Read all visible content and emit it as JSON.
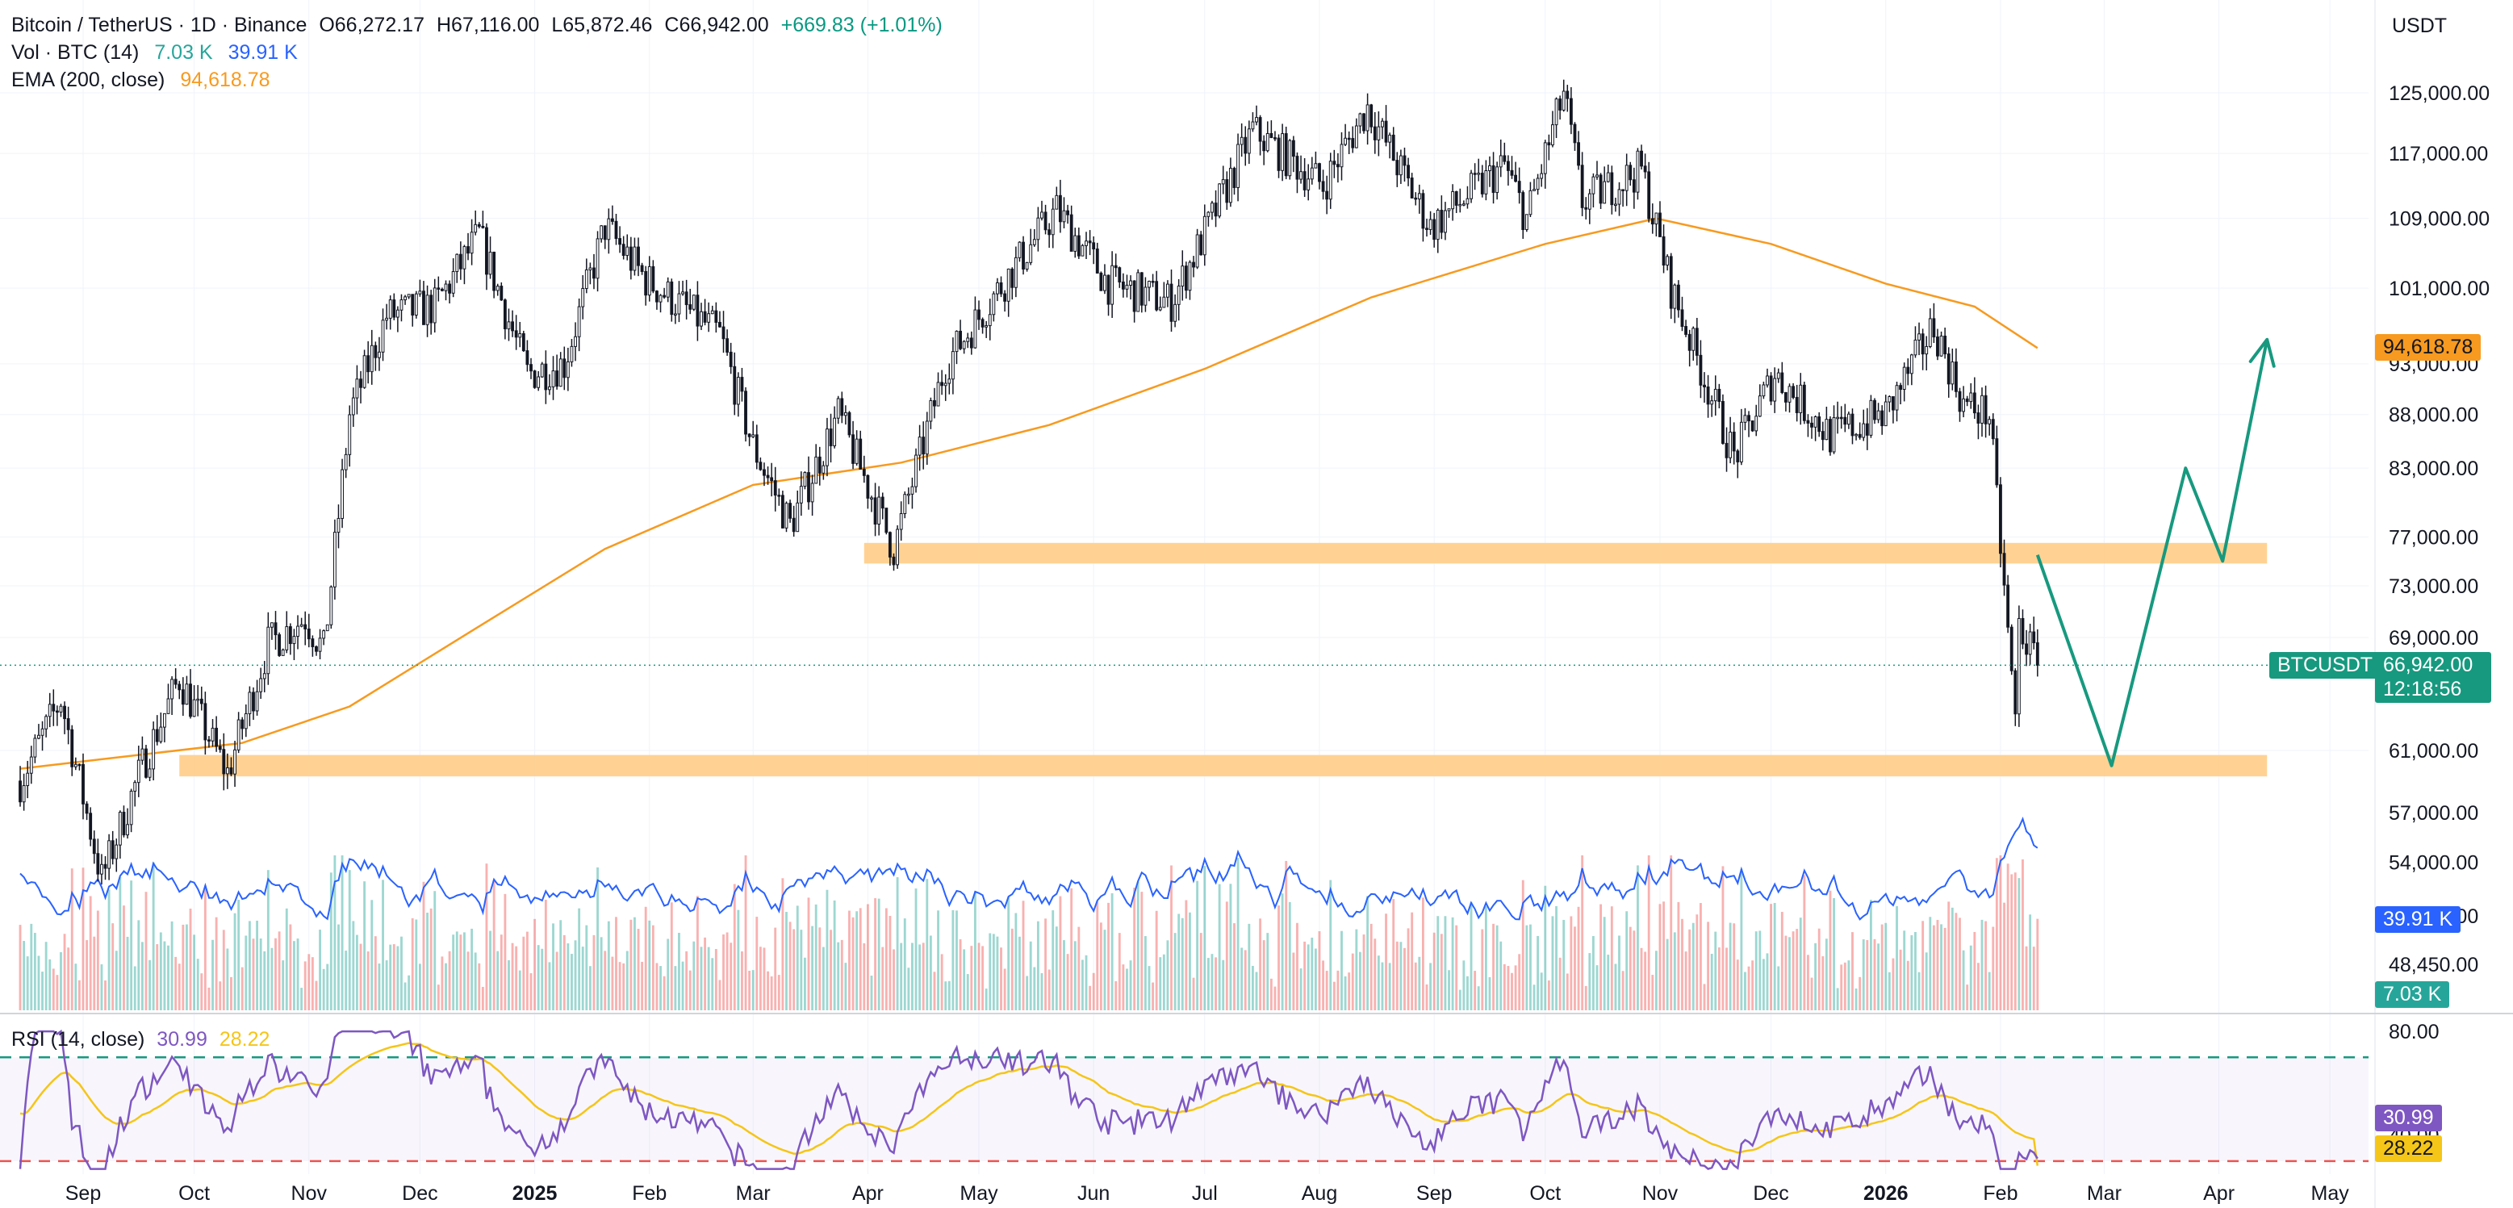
{
  "header": {
    "symbol": "Bitcoin / TetherUS · 1D · Binance",
    "open": "O66,272.17",
    "high": "H67,116.00",
    "low": "L65,872.46",
    "close": "C66,942.00",
    "change": "+669.83 (+1.01%)",
    "vol_label": "Vol · BTC (14)",
    "vol_value": "7.03 K",
    "vol_ma": "39.91 K",
    "ema_label": "EMA (200, close)",
    "ema_value": "94,618.78",
    "currency": "USDT"
  },
  "rsi_legend": {
    "label": "RSI (14, close)",
    "rsi": "30.99",
    "rsi_ma": "28.22"
  },
  "price_tags": {
    "ema": "94,618.78",
    "symbol": "BTCUSDT",
    "last": "66,942.00",
    "countdown": "12:18:56",
    "vol_ma": "39.91 K",
    "vol": "7.03 K",
    "rsi": "30.99",
    "rsi_ma": "28.22"
  },
  "colors": {
    "up": "#26a69a",
    "down": "#ef5350",
    "ema": "#f79a1f",
    "zone": "#ffca80",
    "projection": "#17997f",
    "rsi": "#7e57c2",
    "rsi_ma": "#f5c518",
    "vol_ma": "#2962ff"
  },
  "chart_data": [
    {
      "type": "candlestick",
      "title": "Bitcoin / TetherUS · 1D · Binance",
      "x_tick_labels": [
        "Sep",
        "Oct",
        "Nov",
        "Dec",
        "2025",
        "Feb",
        "Mar",
        "Apr",
        "May",
        "Jun",
        "Jul",
        "Aug",
        "Sep",
        "Oct",
        "Nov",
        "Dec",
        "2026",
        "Feb",
        "Mar",
        "Apr",
        "May"
      ],
      "y_tick_labels": [
        "125,000.00",
        "117,000.00",
        "109,000.00",
        "101,000.00",
        "93,000.00",
        "88,000.00",
        "83,000.00",
        "77,000.00",
        "73,000.00",
        "69,000.00",
        "61,000.00",
        "57,000.00",
        "54,000.00",
        "50,000.00",
        "48,450.00"
      ],
      "y_scale": "log",
      "ylim": [
        47500,
        131000
      ],
      "series": [
        {
          "name": "Bitcoin / TetherUS",
          "kind": "candles"
        },
        {
          "name": "EMA (200, close)",
          "last": 94618.78
        }
      ],
      "price_path": [
        [
          "2024-08-15",
          59000
        ],
        [
          "2024-08-26",
          64500
        ],
        [
          "2024-09-06",
          53000
        ],
        [
          "2024-09-17",
          60000
        ],
        [
          "2024-09-27",
          66000
        ],
        [
          "2024-10-10",
          59500
        ],
        [
          "2024-10-21",
          68500
        ],
        [
          "2024-10-31",
          70500
        ],
        [
          "2024-11-05",
          68000
        ],
        [
          "2024-11-12",
          88000
        ],
        [
          "2024-11-22",
          98000
        ],
        [
          "2024-12-05",
          99000
        ],
        [
          "2024-12-17",
          107000
        ],
        [
          "2024-12-30",
          92000
        ],
        [
          "2025-01-09",
          93000
        ],
        [
          "2025-01-20",
          108000
        ],
        [
          "2025-01-31",
          102000
        ],
        [
          "2025-02-20",
          96000
        ],
        [
          "2025-03-01",
          85000
        ],
        [
          "2025-03-11",
          78000
        ],
        [
          "2025-03-24",
          88000
        ],
        [
          "2025-04-08",
          76000
        ],
        [
          "2025-04-22",
          93000
        ],
        [
          "2025-05-10",
          103000
        ],
        [
          "2025-05-22",
          110000
        ],
        [
          "2025-06-05",
          101500
        ],
        [
          "2025-06-22",
          99500
        ],
        [
          "2025-07-03",
          109000
        ],
        [
          "2025-07-14",
          120000
        ],
        [
          "2025-08-02",
          113000
        ],
        [
          "2025-08-14",
          123000
        ],
        [
          "2025-08-31",
          108000
        ],
        [
          "2025-09-20",
          115500
        ],
        [
          "2025-09-26",
          109000
        ],
        [
          "2025-10-06",
          125000
        ],
        [
          "2025-10-11",
          111000
        ],
        [
          "2025-10-27",
          115000
        ],
        [
          "2025-11-04",
          101000
        ],
        [
          "2025-11-21",
          84000
        ],
        [
          "2025-12-02",
          92000
        ],
        [
          "2025-12-17",
          86000
        ],
        [
          "2026-01-01",
          88000
        ],
        [
          "2026-01-14",
          97000
        ],
        [
          "2026-01-22",
          89000
        ],
        [
          "2026-01-29",
          88000
        ],
        [
          "2026-02-05",
          63000
        ],
        [
          "2026-02-06",
          70000
        ],
        [
          "2026-02-11",
          66942
        ]
      ],
      "ema_path": [
        [
          "2024-08-15",
          59800
        ],
        [
          "2024-10-14",
          61500
        ],
        [
          "2024-11-12",
          64000
        ],
        [
          "2024-12-15",
          69500
        ],
        [
          "2025-01-20",
          76000
        ],
        [
          "2025-03-01",
          81500
        ],
        [
          "2025-04-10",
          83500
        ],
        [
          "2025-05-20",
          87000
        ],
        [
          "2025-07-01",
          92500
        ],
        [
          "2025-08-15",
          100000
        ],
        [
          "2025-10-01",
          106000
        ],
        [
          "2025-10-31",
          109000
        ],
        [
          "2025-12-01",
          106000
        ],
        [
          "2026-01-01",
          101500
        ],
        [
          "2026-01-25",
          99000
        ],
        [
          "2026-02-11",
          94618.78
        ]
      ],
      "zones": [
        {
          "from": "2025-03-31",
          "to": "2026-04-14",
          "low": 74800,
          "high": 76500
        },
        {
          "from": "2024-09-27",
          "to": "2026-04-14",
          "low": 59300,
          "high": 60700
        }
      ],
      "projection": [
        [
          "2026-02-11",
          75500
        ],
        [
          "2026-03-03",
          60000
        ],
        [
          "2026-03-23",
          83000
        ],
        [
          "2026-04-02",
          75000
        ],
        [
          "2026-04-14",
          95500
        ]
      ],
      "last_price": 66942.0
    },
    {
      "type": "bar",
      "title": "Vol · BTC (14)",
      "series": [
        {
          "name": "Vol",
          "last": "7.03 K"
        },
        {
          "name": "Vol MA",
          "last": "39.91 K"
        }
      ]
    },
    {
      "type": "line",
      "title": "RSI (14, close)",
      "y_tick_labels": [
        "80.00",
        "40.00"
      ],
      "ylim": [
        25,
        85
      ],
      "levels": [
        30,
        70
      ],
      "series": [
        {
          "name": "RSI",
          "last": 30.99
        },
        {
          "name": "RSI MA",
          "last": 28.22
        }
      ]
    }
  ]
}
